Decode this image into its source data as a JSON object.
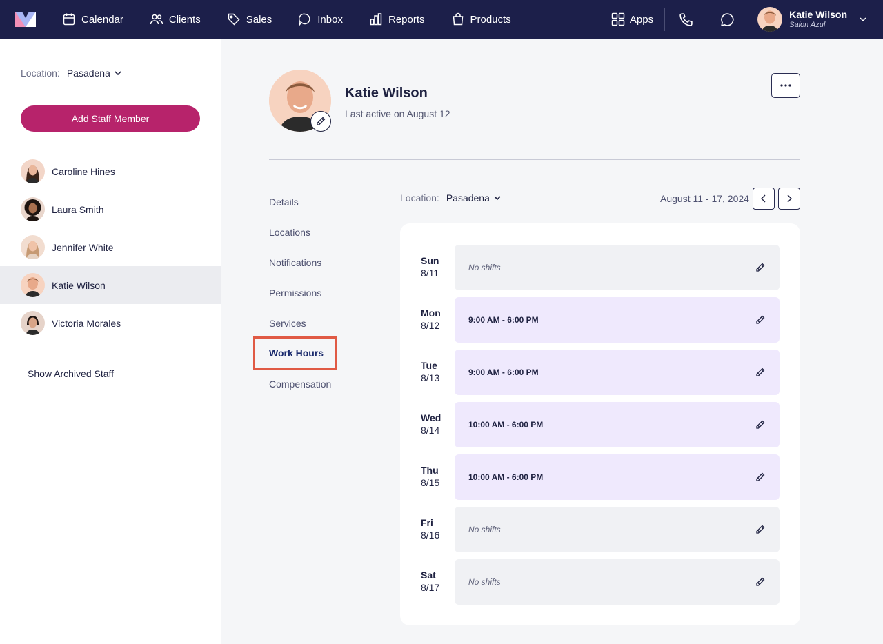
{
  "nav": {
    "items": [
      {
        "label": "Calendar",
        "icon": "calendar-icon"
      },
      {
        "label": "Clients",
        "icon": "users-icon"
      },
      {
        "label": "Sales",
        "icon": "tag-icon"
      },
      {
        "label": "Inbox",
        "icon": "chat-bubble-icon"
      },
      {
        "label": "Reports",
        "icon": "bar-chart-icon"
      },
      {
        "label": "Products",
        "icon": "shopping-bag-icon"
      }
    ],
    "apps_label": "Apps",
    "user_name": "Katie Wilson",
    "user_salon": "Salon Azul"
  },
  "sidebar": {
    "location_label": "Location:",
    "location_value": "Pasadena",
    "add_button": "Add Staff Member",
    "staff": [
      {
        "name": "Caroline Hines"
      },
      {
        "name": "Laura Smith"
      },
      {
        "name": "Jennifer White"
      },
      {
        "name": "Katie Wilson"
      },
      {
        "name": "Victoria Morales"
      }
    ],
    "archived_label": "Show Archived Staff"
  },
  "profile": {
    "name": "Katie Wilson",
    "last_active": "Last active on August 12"
  },
  "subnav": {
    "items": [
      "Details",
      "Locations",
      "Notifications",
      "Permissions",
      "Services"
    ],
    "active": "Work Hours",
    "after": [
      "Compensation"
    ]
  },
  "schedule": {
    "location_label": "Location:",
    "location_value": "Pasadena",
    "date_range": "August 11 - 17, 2024",
    "days": [
      {
        "day": "Sun",
        "date": "8/11",
        "shift": "No shifts",
        "has_shift": false
      },
      {
        "day": "Mon",
        "date": "8/12",
        "shift": "9:00 AM - 6:00 PM",
        "has_shift": true
      },
      {
        "day": "Tue",
        "date": "8/13",
        "shift": "9:00 AM - 6:00 PM",
        "has_shift": true
      },
      {
        "day": "Wed",
        "date": "8/14",
        "shift": "10:00 AM - 6:00 PM",
        "has_shift": true
      },
      {
        "day": "Thu",
        "date": "8/15",
        "shift": "10:00 AM - 6:00 PM",
        "has_shift": true
      },
      {
        "day": "Fri",
        "date": "8/16",
        "shift": "No shifts",
        "has_shift": false
      },
      {
        "day": "Sat",
        "date": "8/17",
        "shift": "No shifts",
        "has_shift": false
      }
    ]
  },
  "colors": {
    "nav_bg": "#1c1f4a",
    "primary_button": "#b7236b",
    "shift_bg": "#efe9fd",
    "highlight_border": "#e05a45"
  }
}
